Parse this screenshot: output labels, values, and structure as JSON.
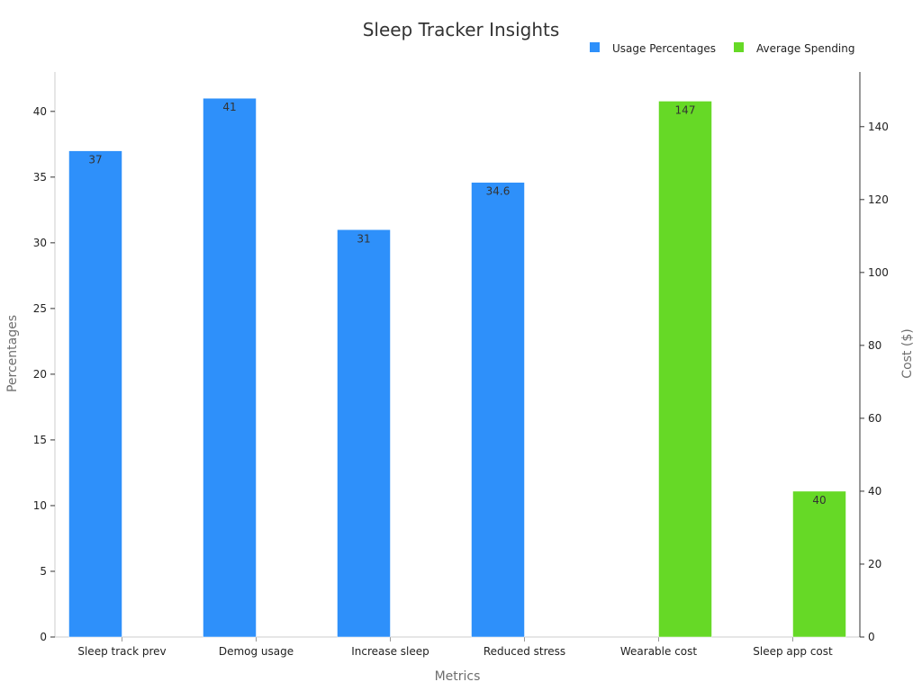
{
  "chart_data": {
    "type": "bar",
    "title": "Sleep Tracker Insights",
    "xlabel": "Metrics",
    "ylabel": "Percentages",
    "y2label": "Cost ($)",
    "categories": [
      "Sleep track prev",
      "Demog usage",
      "Increase sleep",
      "Reduced stress",
      "Wearable cost",
      "Sleep app cost"
    ],
    "ylim": [
      0,
      43
    ],
    "y2lim": [
      0,
      155
    ],
    "yticks": [
      0,
      5,
      10,
      15,
      20,
      25,
      30,
      35,
      40
    ],
    "y2ticks": [
      0,
      20,
      40,
      60,
      80,
      100,
      120,
      140
    ],
    "legend_position": "top-right",
    "grid": false,
    "series": [
      {
        "name": "Usage Percentages",
        "axis": "left",
        "color": "#2e90fa",
        "values": [
          37,
          41,
          31,
          34.6,
          null,
          null
        ],
        "labels": [
          "37",
          "41",
          "31",
          "34.6",
          "",
          ""
        ]
      },
      {
        "name": "Average Spending",
        "axis": "right",
        "color": "#66d926",
        "values": [
          null,
          null,
          null,
          null,
          147,
          40
        ],
        "labels": [
          "",
          "",
          "",
          "",
          "147",
          "40"
        ]
      }
    ]
  }
}
